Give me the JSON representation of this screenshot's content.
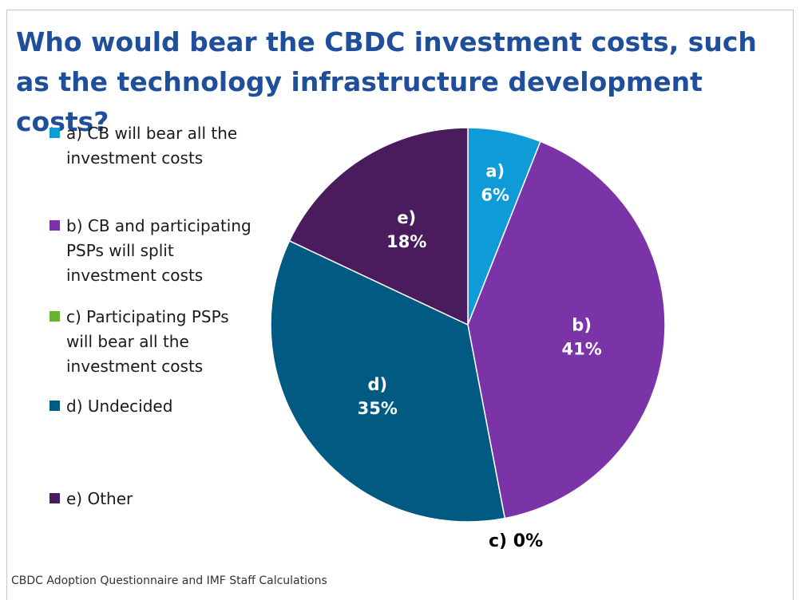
{
  "chart_data": {
    "type": "pie",
    "title": "Who would bear the CBDC investment costs, such as the technology infrastructure development costs?",
    "source": "CBDC Adoption Questionnaire and IMF Staff Calculations",
    "legend_position": "left",
    "slices": [
      {
        "id": "a",
        "short": "a)",
        "label": "a) CB will bear all the investment costs",
        "value": 6,
        "value_label": "6%",
        "color": "#0f9bd7"
      },
      {
        "id": "b",
        "short": "b)",
        "label": "b) CB and participating PSPs will split investment costs",
        "value": 41,
        "value_label": "41%",
        "color": "#7b33a8"
      },
      {
        "id": "c",
        "short": "c)",
        "label": "c) Participating PSPs will bear all the investment costs",
        "value": 0,
        "value_label": "0%",
        "color": "#6ab42d"
      },
      {
        "id": "d",
        "short": "d)",
        "label": "d) Undecided",
        "value": 35,
        "value_label": "35%",
        "color": "#005a82"
      },
      {
        "id": "e",
        "short": "e)",
        "label": "e) Other",
        "value": 18,
        "value_label": "18%",
        "color": "#4a1c5e"
      }
    ],
    "outside_label": "c) 0%"
  }
}
